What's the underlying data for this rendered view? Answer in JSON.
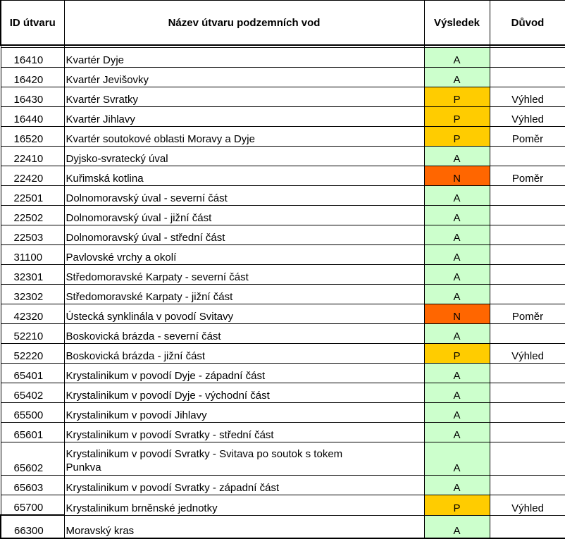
{
  "table": {
    "headers": {
      "id": "ID útvaru",
      "name": "Název útvaru podzemních vod",
      "result": "Výsledek",
      "reason": "Důvod"
    },
    "colors": {
      "A": "#ccffcc",
      "P": "#ffcc00",
      "N": "#ff6600"
    },
    "rows": [
      {
        "id": "16410",
        "name": "Kvartér Dyje",
        "result": "A",
        "reason": ""
      },
      {
        "id": "16420",
        "name": "Kvartér Jevišovky",
        "result": "A",
        "reason": ""
      },
      {
        "id": "16430",
        "name": "Kvartér Svratky",
        "result": "P",
        "reason": "Výhled"
      },
      {
        "id": "16440",
        "name": "Kvartér Jihlavy",
        "result": "P",
        "reason": "Výhled"
      },
      {
        "id": "16520",
        "name": "Kvartér soutokové oblasti Moravy a Dyje",
        "result": "P",
        "reason": "Poměr"
      },
      {
        "id": "22410",
        "name": "Dyjsko-svratecký úval",
        "result": "A",
        "reason": ""
      },
      {
        "id": "22420",
        "name": "Kuřimská kotlina",
        "result": "N",
        "reason": "Poměr"
      },
      {
        "id": "22501",
        "name": "Dolnomoravský úval - severní část",
        "result": "A",
        "reason": ""
      },
      {
        "id": "22502",
        "name": "Dolnomoravský úval - jižní část",
        "result": "A",
        "reason": ""
      },
      {
        "id": "22503",
        "name": "Dolnomoravský úval - střední část",
        "result": "A",
        "reason": ""
      },
      {
        "id": "31100",
        "name": "Pavlovské vrchy a okolí",
        "result": "A",
        "reason": ""
      },
      {
        "id": "32301",
        "name": "Středomoravské Karpaty - severní část",
        "result": "A",
        "reason": ""
      },
      {
        "id": "32302",
        "name": "Středomoravské Karpaty - jižní část",
        "result": "A",
        "reason": ""
      },
      {
        "id": "42320",
        "name": "Ústecká synklinála v povodí Svitavy",
        "result": "N",
        "reason": "Poměr"
      },
      {
        "id": "52210",
        "name": "Boskovická brázda - severní část",
        "result": "A",
        "reason": ""
      },
      {
        "id": "52220",
        "name": "Boskovická brázda - jižní část",
        "result": "P",
        "reason": "Výhled"
      },
      {
        "id": "65401",
        "name": "Krystalinikum v povodí Dyje - západní část",
        "result": "A",
        "reason": ""
      },
      {
        "id": "65402",
        "name": "Krystalinikum v povodí Dyje - východní část",
        "result": "A",
        "reason": ""
      },
      {
        "id": "65500",
        "name": "Krystalinikum v povodí Jihlavy",
        "result": "A",
        "reason": ""
      },
      {
        "id": "65601",
        "name": "Krystalinikum v povodí Svratky - střední část",
        "result": "A",
        "reason": ""
      },
      {
        "id": "65602",
        "name": "Krystalinikum v povodí Svratky - Svitava po soutok s tokem Punkva",
        "result": "A",
        "reason": ""
      },
      {
        "id": "65603",
        "name": "Krystalinikum v povodí Svratky - západní část",
        "result": "A",
        "reason": ""
      },
      {
        "id": "65700",
        "name": "Krystalinikum brněnské jednotky",
        "result": "P",
        "reason": "Výhled"
      },
      {
        "id": "66300",
        "name": "Moravský kras",
        "result": "A",
        "reason": ""
      }
    ]
  }
}
